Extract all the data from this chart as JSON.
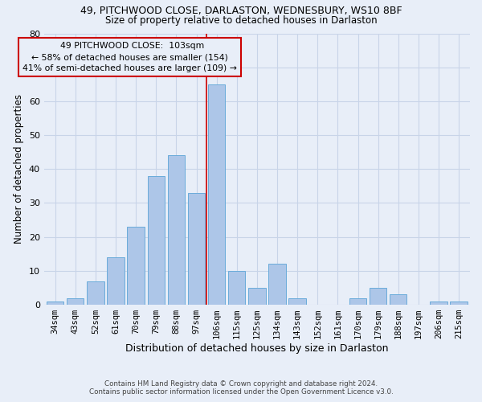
{
  "title1": "49, PITCHWOOD CLOSE, DARLASTON, WEDNESBURY, WS10 8BF",
  "title2": "Size of property relative to detached houses in Darlaston",
  "xlabel": "Distribution of detached houses by size in Darlaston",
  "ylabel": "Number of detached properties",
  "footnote1": "Contains HM Land Registry data © Crown copyright and database right 2024.",
  "footnote2": "Contains public sector information licensed under the Open Government Licence v3.0.",
  "bar_labels": [
    "34sqm",
    "43sqm",
    "52sqm",
    "61sqm",
    "70sqm",
    "79sqm",
    "88sqm",
    "97sqm",
    "106sqm",
    "115sqm",
    "125sqm",
    "134sqm",
    "143sqm",
    "152sqm",
    "161sqm",
    "170sqm",
    "179sqm",
    "188sqm",
    "197sqm",
    "206sqm",
    "215sqm"
  ],
  "bar_values": [
    1,
    2,
    7,
    14,
    23,
    38,
    44,
    33,
    65,
    10,
    5,
    12,
    2,
    0,
    0,
    2,
    5,
    3,
    0,
    1,
    1
  ],
  "bar_color": "#adc6e8",
  "bar_edge_color": "#6aabda",
  "vline_color": "#cc0000",
  "annotation_text": "  49 PITCHWOOD CLOSE:  103sqm\n← 58% of detached houses are smaller (154)\n41% of semi-detached houses are larger (109) →",
  "annotation_box_color": "#cc0000",
  "ylim": [
    0,
    80
  ],
  "yticks": [
    0,
    10,
    20,
    30,
    40,
    50,
    60,
    70,
    80
  ],
  "grid_color": "#c8d4e8",
  "background_color": "#e8eef8",
  "figsize": [
    6.0,
    5.0
  ],
  "dpi": 100
}
